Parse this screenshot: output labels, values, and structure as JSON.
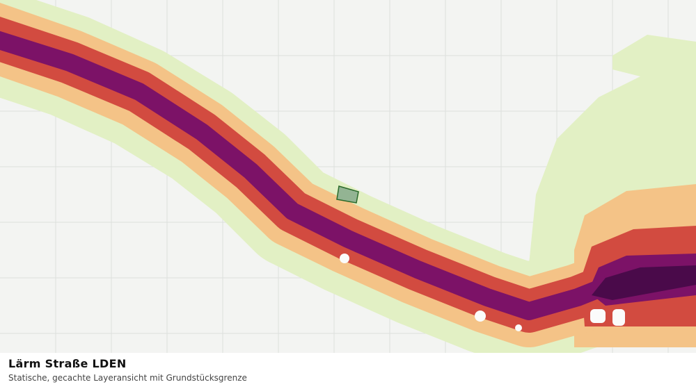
{
  "legend_panel": {
    "title": "Lärm Straße LDEN",
    "subtitle": "Statische, gecachte Layeransicht mit Grundstücksgrenze"
  }
}
